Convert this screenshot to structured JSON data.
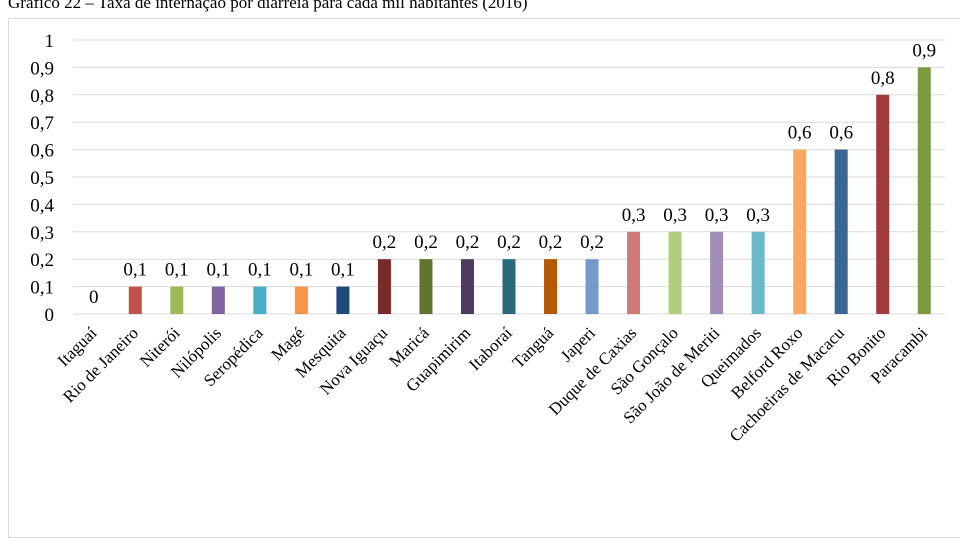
{
  "chart_data": {
    "type": "bar",
    "title": "Gráfico 22 – Taxa de internação por diarreia para cada mil habitantes (2016)",
    "xlabel": "",
    "ylabel": "",
    "ylim": [
      0,
      1
    ],
    "yticks": [
      "0",
      "0,1",
      "0,2",
      "0,3",
      "0,4",
      "0,5",
      "0,6",
      "0,7",
      "0,8",
      "0,9",
      "1"
    ],
    "grid": true,
    "legend": "none",
    "categories": [
      "Itaguaí",
      "Rio de Janeiro",
      "Niterói",
      "Nilópolis",
      "Seropédica",
      "Magé",
      "Mesquita",
      "Nova Iguaçu",
      "Maricá",
      "Guapimirim",
      "Itaboraí",
      "Tanguá",
      "Japeri",
      "Duque de Caxias",
      "São Gonçalo",
      "São João de Meriti",
      "Queimados",
      "Belford Roxo",
      "Cachoeiras de Macacu",
      "Rio Bonito",
      "Paracambi"
    ],
    "values": [
      0,
      0.1,
      0.1,
      0.1,
      0.1,
      0.1,
      0.1,
      0.2,
      0.2,
      0.2,
      0.2,
      0.2,
      0.2,
      0.3,
      0.3,
      0.3,
      0.3,
      0.6,
      0.6,
      0.8,
      0.9
    ],
    "value_labels": [
      "0",
      "0,1",
      "0,1",
      "0,1",
      "0,1",
      "0,1",
      "0,1",
      "0,2",
      "0,2",
      "0,2",
      "0,2",
      "0,2",
      "0,2",
      "0,3",
      "0,3",
      "0,3",
      "0,3",
      "0,6",
      "0,6",
      "0,8",
      "0,9"
    ],
    "colors": [
      "#c0504d",
      "#c0504d",
      "#9bbb59",
      "#8064a2",
      "#4bacc6",
      "#f79646",
      "#1f497d",
      "#7b2a2a",
      "#5f7530",
      "#4d3b62",
      "#276a7c",
      "#b65708",
      "#729aca",
      "#d07a78",
      "#b2cd7f",
      "#9f8cb9",
      "#6bb8cc",
      "#f9a964",
      "#3a6595",
      "#a03b3b",
      "#7b9a3e"
    ]
  }
}
